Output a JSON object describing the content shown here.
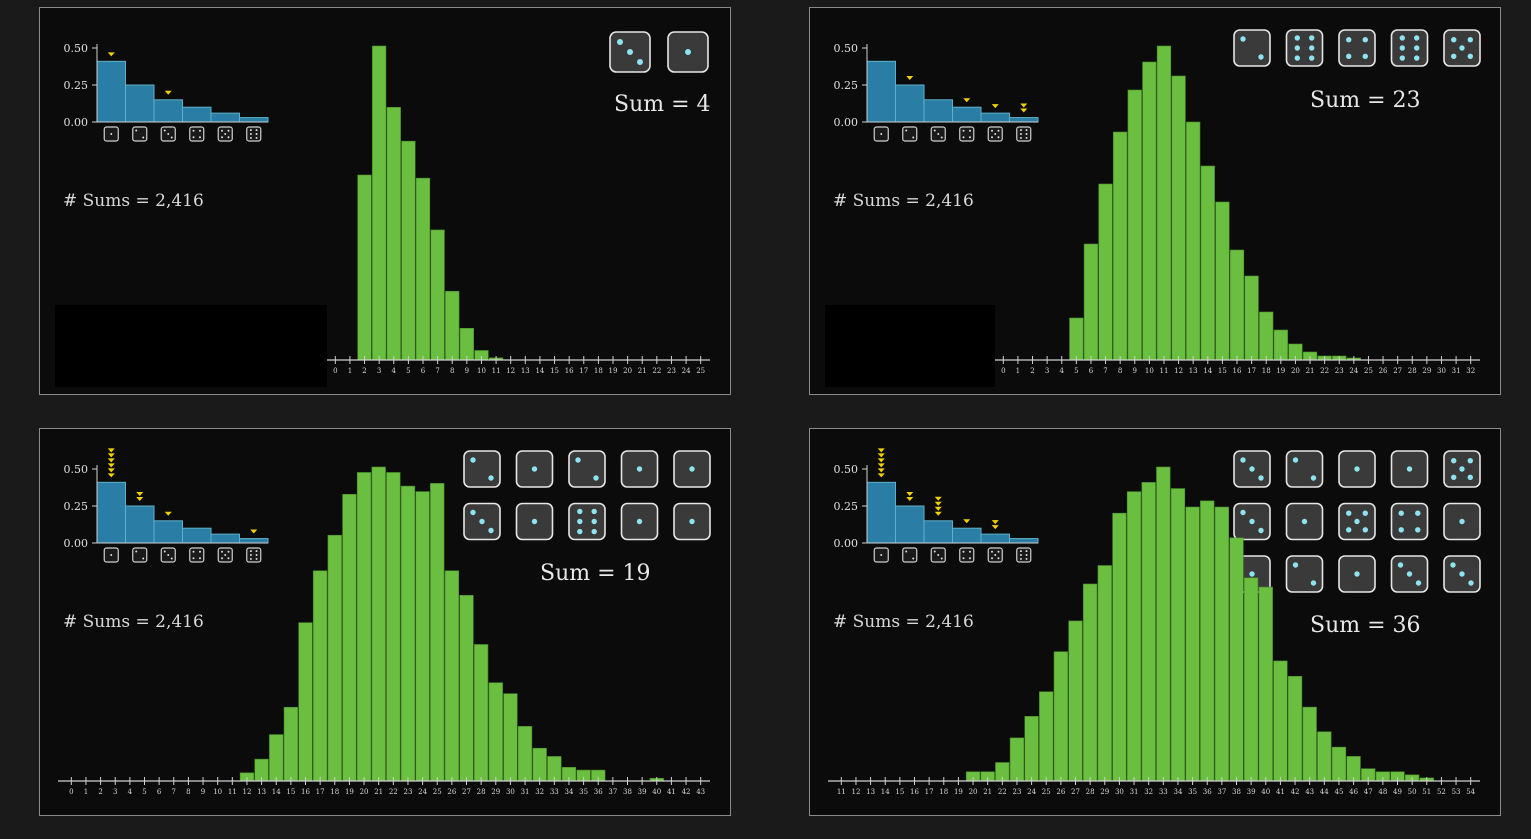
{
  "chart_data": [
    {
      "type": "bar",
      "dice_count": 2,
      "sum": 4,
      "sum_label": "Sum = 4",
      "count_label": "# Sums = 2,416",
      "dice_faces": [
        3,
        1
      ],
      "die_distribution": {
        "type": "bar",
        "categories": [
          1,
          2,
          3,
          4,
          5,
          6
        ],
        "values": [
          0.41,
          0.25,
          0.15,
          0.1,
          0.06,
          0.03
        ],
        "yticks": [
          "0.00",
          "0.25",
          "0.50"
        ],
        "ylim": [
          0,
          0.5
        ],
        "picks_per_face": [
          1,
          0,
          1,
          0,
          0,
          0
        ]
      },
      "x": [
        0,
        1,
        2,
        3,
        4,
        5,
        6,
        7,
        8,
        9,
        10,
        11,
        12,
        13,
        14,
        15,
        16,
        17,
        18,
        19,
        20,
        21,
        22,
        23,
        24,
        25
      ],
      "values": [
        0,
        0,
        0.175,
        0.297,
        0.239,
        0.207,
        0.172,
        0.123,
        0.065,
        0.03,
        0.009,
        0.002,
        0,
        0,
        0,
        0,
        0,
        0,
        0,
        0,
        0,
        0,
        0,
        0,
        0,
        0
      ]
    },
    {
      "type": "bar",
      "dice_count": 5,
      "sum": 23,
      "sum_label": "Sum = 23",
      "count_label": "# Sums = 2,416",
      "dice_faces": [
        2,
        6,
        4,
        6,
        5
      ],
      "die_distribution": {
        "type": "bar",
        "categories": [
          1,
          2,
          3,
          4,
          5,
          6
        ],
        "values": [
          0.41,
          0.25,
          0.15,
          0.1,
          0.06,
          0.03
        ],
        "yticks": [
          "0.00",
          "0.25",
          "0.50"
        ],
        "ylim": [
          0,
          0.5
        ],
        "picks_per_face": [
          0,
          1,
          0,
          1,
          1,
          2
        ]
      },
      "x": [
        0,
        1,
        2,
        3,
        4,
        5,
        6,
        7,
        8,
        9,
        10,
        11,
        12,
        13,
        14,
        15,
        16,
        17,
        18,
        19,
        20,
        21,
        22,
        23,
        24,
        25,
        26,
        27,
        28,
        29,
        30,
        31,
        32
      ],
      "values": [
        0,
        0,
        0,
        0,
        0,
        0.021,
        0.058,
        0.088,
        0.114,
        0.135,
        0.149,
        0.157,
        0.142,
        0.119,
        0.097,
        0.079,
        0.055,
        0.042,
        0.024,
        0.015,
        0.008,
        0.004,
        0.002,
        0.002,
        0.001,
        0,
        0,
        0,
        0,
        0,
        0,
        0,
        0
      ]
    },
    {
      "type": "bar",
      "dice_count": 10,
      "sum": 19,
      "sum_label": "Sum = 19",
      "count_label": "# Sums = 2,416",
      "dice_faces": [
        2,
        1,
        2,
        1,
        1,
        3,
        1,
        6,
        1,
        1
      ],
      "die_distribution": {
        "type": "bar",
        "categories": [
          1,
          2,
          3,
          4,
          5,
          6
        ],
        "values": [
          0.41,
          0.25,
          0.15,
          0.1,
          0.06,
          0.03
        ],
        "yticks": [
          "0.00",
          "0.25",
          "0.50"
        ],
        "ylim": [
          0,
          0.5
        ],
        "picks_per_face": [
          6,
          2,
          1,
          0,
          0,
          1
        ]
      },
      "x": [
        0,
        1,
        2,
        3,
        4,
        5,
        6,
        7,
        8,
        9,
        10,
        11,
        12,
        13,
        14,
        15,
        16,
        17,
        18,
        19,
        20,
        21,
        22,
        23,
        24,
        25,
        26,
        27,
        28,
        29,
        30,
        31,
        32,
        33,
        34,
        35,
        36,
        37,
        38,
        39,
        40,
        41,
        42,
        43
      ],
      "values": [
        0,
        0,
        0,
        0,
        0,
        0,
        0,
        0,
        0,
        0,
        0,
        0,
        0.003,
        0.008,
        0.017,
        0.027,
        0.058,
        0.077,
        0.09,
        0.105,
        0.113,
        0.115,
        0.113,
        0.108,
        0.106,
        0.109,
        0.077,
        0.068,
        0.05,
        0.036,
        0.032,
        0.02,
        0.012,
        0.009,
        0.005,
        0.004,
        0.004,
        0,
        0,
        0,
        0.001,
        0,
        0,
        0
      ]
    },
    {
      "type": "bar",
      "dice_count": 15,
      "sum": 36,
      "sum_label": "Sum = 36",
      "count_label": "# Sums = 2,416",
      "dice_faces": [
        3,
        2,
        1,
        1,
        5,
        3,
        1,
        5,
        4,
        1,
        1,
        2,
        1,
        3,
        3
      ],
      "die_distribution": {
        "type": "bar",
        "categories": [
          1,
          2,
          3,
          4,
          5,
          6
        ],
        "values": [
          0.41,
          0.25,
          0.15,
          0.1,
          0.06,
          0.03
        ],
        "yticks": [
          "0.00",
          "0.25",
          "0.50"
        ],
        "ylim": [
          0,
          0.5
        ],
        "picks_per_face": [
          6,
          2,
          4,
          1,
          2,
          0
        ]
      },
      "x": [
        11,
        12,
        13,
        14,
        15,
        16,
        17,
        18,
        19,
        20,
        21,
        22,
        23,
        24,
        25,
        26,
        27,
        28,
        29,
        30,
        31,
        32,
        33,
        34,
        35,
        36,
        37,
        38,
        39,
        40,
        41,
        42,
        43,
        44,
        45,
        46,
        47,
        48,
        49,
        50,
        51,
        52,
        53,
        54
      ],
      "values": [
        0,
        0,
        0,
        0,
        0,
        0,
        0,
        0,
        0,
        0.003,
        0.003,
        0.006,
        0.014,
        0.021,
        0.029,
        0.042,
        0.052,
        0.064,
        0.07,
        0.087,
        0.094,
        0.097,
        0.102,
        0.095,
        0.089,
        0.091,
        0.089,
        0.079,
        0.066,
        0.063,
        0.039,
        0.034,
        0.024,
        0.016,
        0.011,
        0.008,
        0.004,
        0.003,
        0.003,
        0.002,
        0.001,
        0,
        0,
        0
      ]
    }
  ],
  "colors": {
    "main_bar": "#6abf40",
    "main_bar_edge": "#4c8c2c",
    "die_bar_fill": "#2a7ea5",
    "die_bar_edge": "#5fb0c8",
    "marker": "#f2d100",
    "pip": "#8ee3f0",
    "die_face": "#3a3a3a",
    "axis": "#d0d0d0"
  }
}
